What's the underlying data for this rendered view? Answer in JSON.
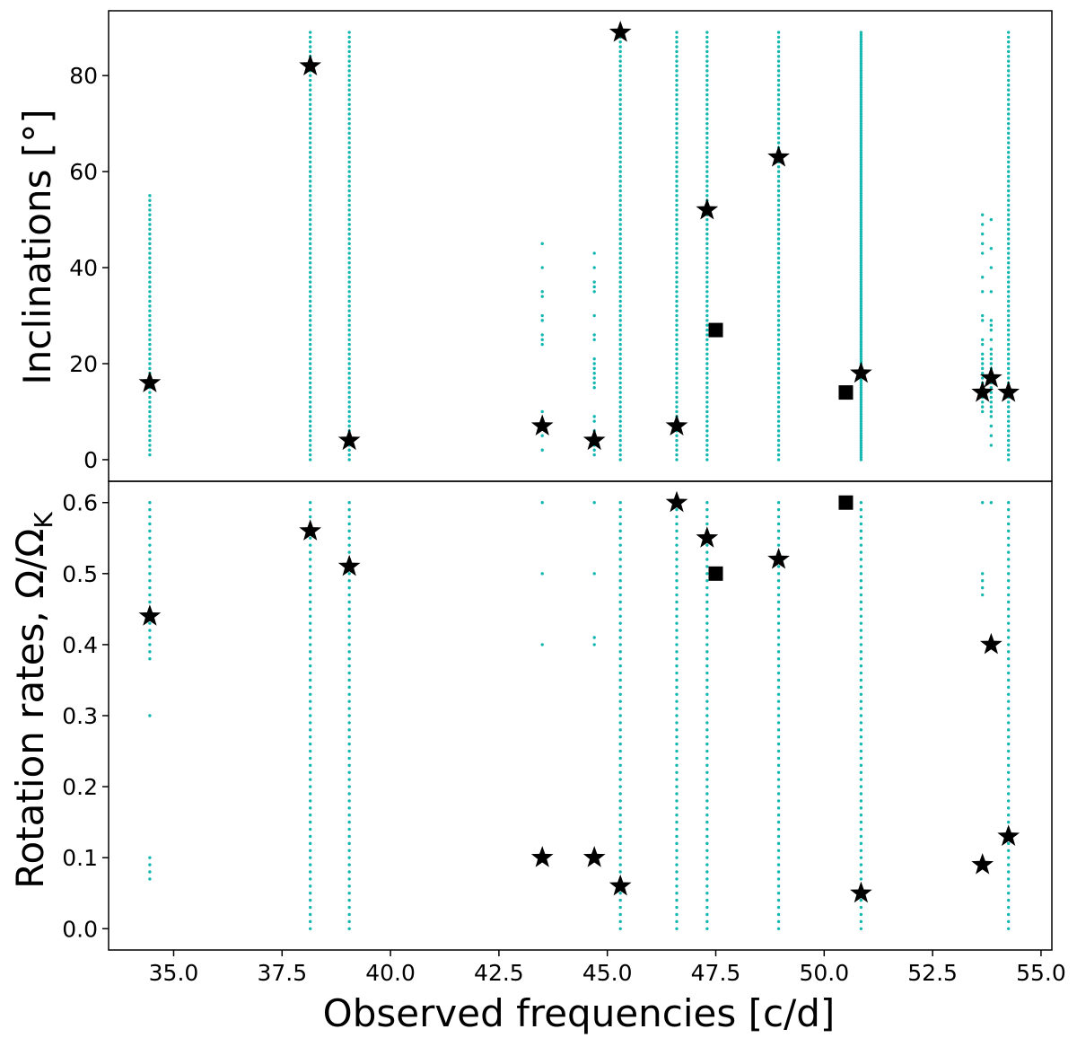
{
  "chart_data": {
    "type": "scatter",
    "xlabel": "Observed frequencies [c/d]",
    "xlim": [
      33.5,
      55.25
    ],
    "xticks": [
      "35.0",
      "37.5",
      "40.0",
      "42.5",
      "45.0",
      "47.5",
      "50.0",
      "52.5",
      "55.0"
    ],
    "grid": false,
    "colors": {
      "candidates": "#14b8b0",
      "markers": "#000000"
    },
    "panels": [
      {
        "id": "top",
        "ylabel": "Inclinations [°]",
        "ylim": [
          -4.5,
          93.5
        ],
        "yticks": [
          "0",
          "20",
          "40",
          "60",
          "80"
        ],
        "candidates": [
          {
            "x": 34.45,
            "ranges": [
              [
                1,
                55,
                1
              ]
            ]
          },
          {
            "x": 38.15,
            "ranges": [
              [
                0,
                89,
                1
              ]
            ]
          },
          {
            "x": 39.05,
            "ranges": [
              [
                0,
                89,
                1
              ]
            ]
          },
          {
            "x": 43.5,
            "values": [
              2,
              5,
              8,
              10,
              24,
              25,
              26,
              29,
              30,
              34,
              35,
              40,
              45
            ]
          },
          {
            "x": 44.7,
            "values": [
              1,
              2,
              3,
              4,
              5,
              6,
              8,
              9,
              15,
              16,
              17,
              18,
              19,
              20,
              21,
              25,
              26,
              30,
              35,
              36,
              37,
              40,
              43
            ]
          },
          {
            "x": 45.3,
            "ranges": [
              [
                0,
                89,
                1
              ]
            ]
          },
          {
            "x": 46.6,
            "ranges": [
              [
                0,
                89,
                1
              ]
            ]
          },
          {
            "x": 47.3,
            "ranges": [
              [
                0,
                89,
                1
              ]
            ]
          },
          {
            "x": 48.95,
            "ranges": [
              [
                0,
                89,
                1
              ]
            ]
          },
          {
            "x": 50.85,
            "ranges": [
              [
                0,
                89,
                0.5
              ]
            ]
          },
          {
            "x": 53.65,
            "values": [
              10,
              11,
              12,
              13,
              14,
              15,
              16,
              17,
              18,
              19,
              20,
              21,
              22,
              24,
              25,
              29,
              30,
              35,
              38,
              43,
              45,
              47,
              49,
              51
            ]
          },
          {
            "x": 53.85,
            "values": [
              3,
              5,
              7,
              9,
              10,
              11,
              12,
              13,
              14,
              15,
              16,
              17,
              18,
              19,
              20,
              21,
              22,
              23,
              25,
              27,
              28,
              29,
              35,
              40,
              44,
              50
            ]
          },
          {
            "x": 54.25,
            "ranges": [
              [
                0,
                89,
                1
              ]
            ]
          }
        ],
        "stars": [
          {
            "x": 34.45,
            "y": 16
          },
          {
            "x": 38.15,
            "y": 82
          },
          {
            "x": 39.05,
            "y": 4
          },
          {
            "x": 43.5,
            "y": 7
          },
          {
            "x": 44.7,
            "y": 4
          },
          {
            "x": 45.3,
            "y": 89
          },
          {
            "x": 46.6,
            "y": 7
          },
          {
            "x": 47.3,
            "y": 52
          },
          {
            "x": 48.95,
            "y": 63
          },
          {
            "x": 50.85,
            "y": 18
          },
          {
            "x": 53.65,
            "y": 14
          },
          {
            "x": 53.85,
            "y": 17
          },
          {
            "x": 54.25,
            "y": 14
          }
        ],
        "squares": [
          {
            "x": 47.5,
            "y": 27
          },
          {
            "x": 50.5,
            "y": 14
          }
        ]
      },
      {
        "id": "bottom",
        "ylabel": "Rotation rates, Ω/Ω",
        "ylabel_sub": "K",
        "ylim": [
          -0.03,
          0.63
        ],
        "yticks": [
          "0.0",
          "0.1",
          "0.2",
          "0.3",
          "0.4",
          "0.5",
          "0.6"
        ],
        "candidates": [
          {
            "x": 34.45,
            "values": [
              0.07,
              0.08,
              0.09,
              0.1,
              0.3,
              0.38,
              0.39,
              0.4,
              0.41,
              0.42,
              0.43,
              0.44,
              0.45,
              0.46,
              0.47,
              0.48,
              0.49,
              0.5,
              0.51,
              0.52,
              0.53,
              0.54,
              0.55,
              0.56,
              0.57,
              0.58,
              0.59,
              0.6
            ]
          },
          {
            "x": 38.15,
            "ranges": [
              [
                0.0,
                0.6,
                0.01
              ]
            ]
          },
          {
            "x": 39.05,
            "ranges": [
              [
                0.0,
                0.6,
                0.01
              ]
            ]
          },
          {
            "x": 43.5,
            "values": [
              0.1,
              0.4,
              0.5,
              0.6
            ]
          },
          {
            "x": 44.7,
            "values": [
              0.1,
              0.4,
              0.41,
              0.5,
              0.6
            ]
          },
          {
            "x": 45.3,
            "ranges": [
              [
                0.0,
                0.6,
                0.01
              ]
            ]
          },
          {
            "x": 46.6,
            "ranges": [
              [
                0.0,
                0.6,
                0.01
              ]
            ]
          },
          {
            "x": 47.3,
            "ranges": [
              [
                0.0,
                0.6,
                0.01
              ]
            ]
          },
          {
            "x": 48.95,
            "ranges": [
              [
                0.0,
                0.6,
                0.01
              ]
            ]
          },
          {
            "x": 50.85,
            "ranges": [
              [
                0.0,
                0.6,
                0.01
              ]
            ]
          },
          {
            "x": 53.65,
            "values": [
              0.09,
              0.47,
              0.48,
              0.49,
              0.5,
              0.6
            ]
          },
          {
            "x": 53.85,
            "values": [
              0.6
            ]
          },
          {
            "x": 54.25,
            "ranges": [
              [
                0.0,
                0.6,
                0.01
              ]
            ]
          }
        ],
        "stars": [
          {
            "x": 34.45,
            "y": 0.44
          },
          {
            "x": 38.15,
            "y": 0.56
          },
          {
            "x": 39.05,
            "y": 0.51
          },
          {
            "x": 43.5,
            "y": 0.1
          },
          {
            "x": 44.7,
            "y": 0.1
          },
          {
            "x": 45.3,
            "y": 0.06
          },
          {
            "x": 46.6,
            "y": 0.6
          },
          {
            "x": 47.3,
            "y": 0.55
          },
          {
            "x": 48.95,
            "y": 0.52
          },
          {
            "x": 50.85,
            "y": 0.05
          },
          {
            "x": 53.65,
            "y": 0.09
          },
          {
            "x": 53.85,
            "y": 0.4
          },
          {
            "x": 54.25,
            "y": 0.13
          }
        ],
        "squares": [
          {
            "x": 47.5,
            "y": 0.5
          },
          {
            "x": 50.5,
            "y": 0.6
          }
        ]
      }
    ]
  }
}
